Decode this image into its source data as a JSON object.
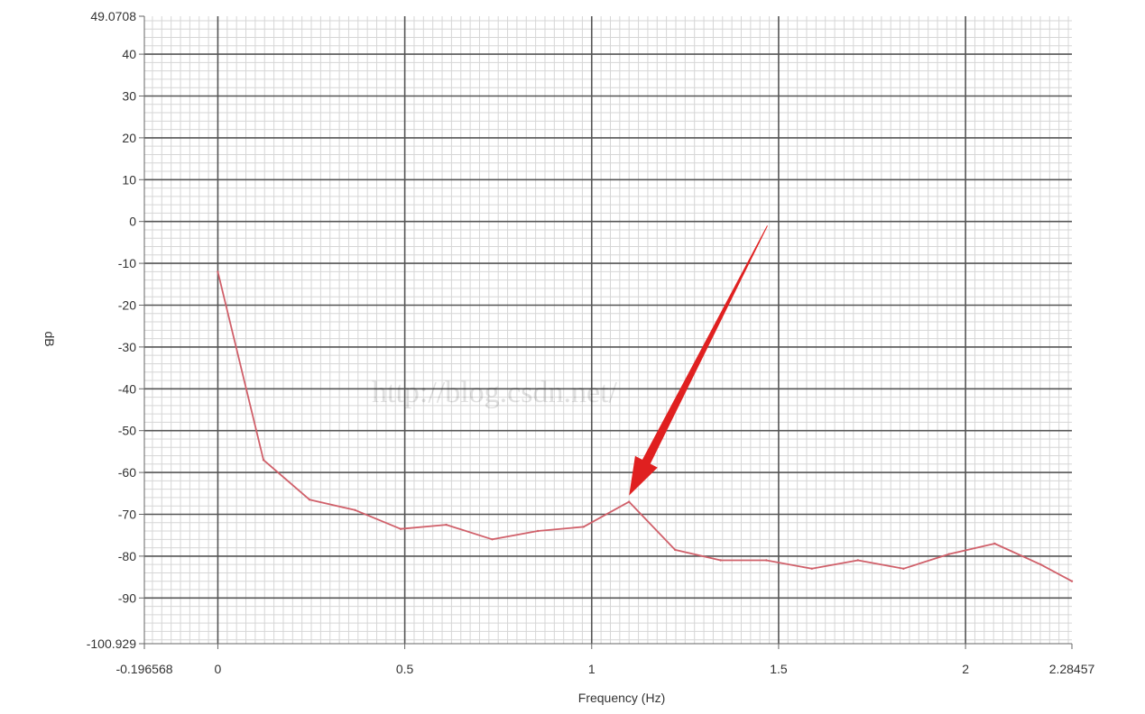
{
  "chart_data": {
    "type": "line",
    "title": "",
    "xlabel": "Frequency (Hz)",
    "ylabel": "dB",
    "xlim": [
      -0.196568,
      2.28457
    ],
    "ylim": [
      -100.929,
      49.0708
    ],
    "x_ticks": [
      {
        "value": -0.196568,
        "label": "-0.196568"
      },
      {
        "value": 0,
        "label": "0"
      },
      {
        "value": 0.5,
        "label": "0.5"
      },
      {
        "value": 1,
        "label": "1"
      },
      {
        "value": 1.5,
        "label": "1.5"
      },
      {
        "value": 2,
        "label": "2"
      },
      {
        "value": 2.28457,
        "label": "2.28457"
      }
    ],
    "y_ticks": [
      {
        "value": 49.0708,
        "label": "49.0708"
      },
      {
        "value": 40,
        "label": "40"
      },
      {
        "value": 30,
        "label": "30"
      },
      {
        "value": 20,
        "label": "20"
      },
      {
        "value": 10,
        "label": "10"
      },
      {
        "value": 0,
        "label": "0"
      },
      {
        "value": -10,
        "label": "-10"
      },
      {
        "value": -20,
        "label": "-20"
      },
      {
        "value": -30,
        "label": "-30"
      },
      {
        "value": -40,
        "label": "-40"
      },
      {
        "value": -50,
        "label": "-50"
      },
      {
        "value": -60,
        "label": "-60"
      },
      {
        "value": -70,
        "label": "-70"
      },
      {
        "value": -80,
        "label": "-80"
      },
      {
        "value": -90,
        "label": "-90"
      },
      {
        "value": -100.929,
        "label": "-100.929"
      }
    ],
    "grid": true,
    "series": [
      {
        "color": "#d0606a",
        "x": [
          0,
          0.122,
          0.245,
          0.367,
          0.489,
          0.611,
          0.734,
          0.856,
          0.978,
          1.1,
          1.223,
          1.345,
          1.467,
          1.589,
          1.712,
          1.834,
          1.956,
          2.078,
          2.201,
          2.28457
        ],
        "y": [
          -12,
          -57,
          -66.5,
          -69,
          -73.5,
          -72.5,
          -76,
          -74,
          -73,
          -67,
          -78.5,
          -81,
          -81,
          -83,
          -81,
          -83,
          -79.5,
          -77,
          -82,
          -86
        ]
      }
    ],
    "annotation": {
      "type": "arrow",
      "color": "#e02020",
      "from": {
        "x": 1.47,
        "y": -1
      },
      "to": {
        "x": 1.1,
        "y": -65.5
      }
    },
    "watermark": "http://blog.csdn.net/"
  }
}
